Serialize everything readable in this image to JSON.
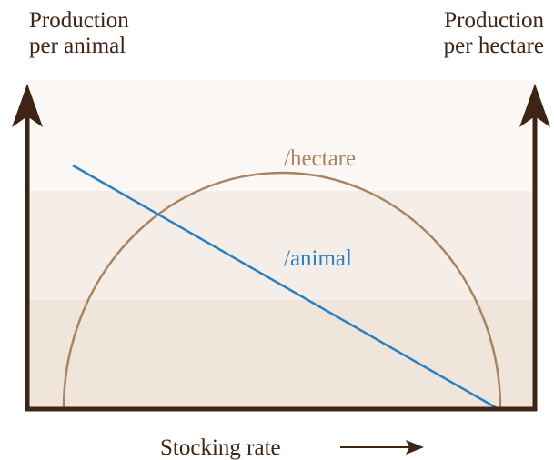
{
  "left_axis": {
    "label_lines": [
      "Production",
      "per animal"
    ]
  },
  "right_axis": {
    "label_lines": [
      "Production",
      "per hectare"
    ]
  },
  "x_axis": {
    "label": "Stocking rate"
  },
  "curves": [
    {
      "label": "/hectare"
    },
    {
      "label": "/animal"
    }
  ]
}
